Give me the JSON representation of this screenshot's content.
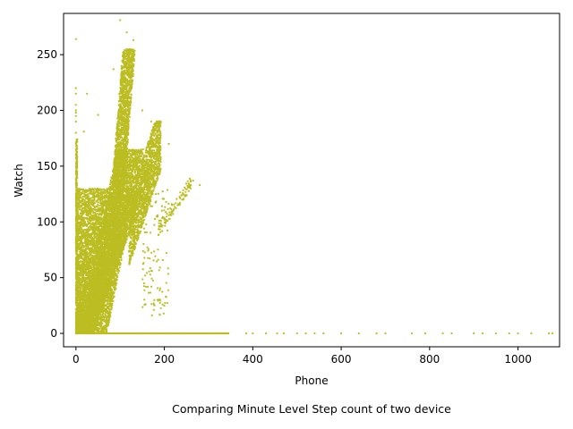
{
  "chart_data": {
    "type": "scatter",
    "xlabel": "Phone",
    "ylabel": "Watch",
    "caption": "Comparing Minute Level Step count of two device",
    "xlim": [
      -28,
      1094
    ],
    "ylim": [
      -12,
      287
    ],
    "x_ticks": [
      0,
      200,
      400,
      600,
      800,
      1000
    ],
    "y_ticks": [
      0,
      50,
      100,
      150,
      200,
      250
    ],
    "grid": false,
    "marker_color": "#bcbd22",
    "zero_watch_phone_x": [
      300,
      320,
      345,
      385,
      400,
      430,
      455,
      470,
      500,
      520,
      540,
      560,
      600,
      640,
      680,
      700,
      760,
      790,
      830,
      850,
      900,
      920,
      950,
      980,
      1000,
      1030,
      1070,
      1078
    ],
    "zero_phone_watch_y": [
      150,
      160,
      170,
      180,
      190,
      195,
      198,
      200,
      205,
      215,
      220,
      264
    ],
    "diagonal_points": [
      [
        190,
        96
      ],
      [
        200,
        102
      ],
      [
        210,
        106
      ],
      [
        220,
        110
      ],
      [
        230,
        115
      ],
      [
        240,
        120
      ],
      [
        250,
        124
      ],
      [
        260,
        133
      ],
      [
        265,
        137
      ],
      [
        280,
        133
      ]
    ],
    "upper_outliers": [
      [
        100,
        281
      ],
      [
        115,
        270
      ],
      [
        130,
        263
      ],
      [
        85,
        237
      ],
      [
        50,
        196
      ],
      [
        18,
        181
      ],
      [
        25,
        215
      ],
      [
        150,
        200
      ],
      [
        170,
        190
      ],
      [
        210,
        170
      ],
      [
        240,
        124
      ],
      [
        190,
        96
      ]
    ]
  }
}
